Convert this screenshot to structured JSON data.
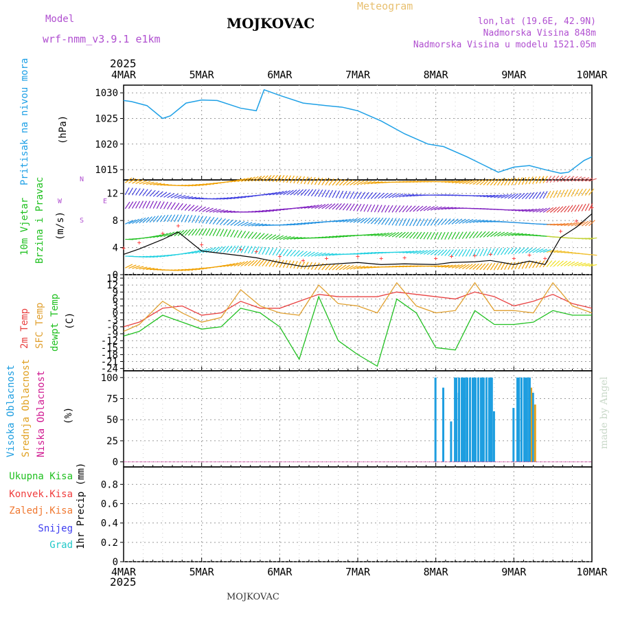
{
  "header": {
    "model_label": "Model",
    "model_name": "wrf-nmm_v3.9.1 e1km",
    "station_title": "MOJKOVAC",
    "product": "Meteogram",
    "coords": "lon,lat (19.6E, 42.9N)",
    "elev": "Nadmorska Visina 848m",
    "model_elev": "Nadmorska Visina u modelu 1521.05m",
    "year_top": "2025",
    "year_bottom": "2025",
    "footer_title": "MOJKOVAC",
    "credit": "made by Angel"
  },
  "axis": {
    "days": [
      "4MAR",
      "5MAR",
      "6MAR",
      "7MAR",
      "8MAR",
      "9MAR",
      "10MAR"
    ]
  },
  "panels": {
    "pressure": {
      "label": "Pritisak na nivou mora",
      "unit": "(hPa)",
      "ticks": [
        "1030",
        "1025",
        "1020",
        "1015"
      ]
    },
    "wind": {
      "label1": "10m Vjetar",
      "label2": "Brzina i Pravac",
      "unit": "(m/s)",
      "ticks": [
        "12",
        "8",
        "4",
        "0"
      ],
      "compass_n": "N",
      "compass_w": "W",
      "compass_e": "E",
      "compass_s": "S"
    },
    "temp": {
      "label1": "2m Temp",
      "label2": "SFC Temp",
      "label3": "dewpt Temp",
      "unit": "(C)",
      "ticks": [
        "15",
        "12",
        "9",
        "6",
        "3",
        "0",
        "-3",
        "-6",
        "-9",
        "-12",
        "-15",
        "-18",
        "-21",
        "-24"
      ]
    },
    "cloud": {
      "label1": "Visoka Oblacnost",
      "label2": "Srednja Oblacnost",
      "label3": "Niska Oblacnost",
      "unit": "(%)",
      "ticks": [
        "100",
        "75",
        "50",
        "25",
        "0"
      ]
    },
    "precip": {
      "labels": [
        "Ukupna Kisa",
        "Konvek.Kisa",
        "Zaledj.Kisa",
        "Snijeg",
        "Grad"
      ],
      "unit": "1hr Precip (mm)",
      "ticks": [
        "0.8",
        "0.6",
        "0.4",
        "0.2",
        "0"
      ]
    }
  },
  "colors": {
    "title": "#000000",
    "header_purple": "#b04fd0",
    "meteogram": "#e8c070",
    "pressure": "#1ea0e6",
    "temp2m": "#e84040",
    "sfc": "#e0a030",
    "dewpt": "#20c020",
    "high_cloud": "#1e9ee0",
    "mid_cloud": "#e0a020",
    "low_cloud": "#d01890",
    "precip_total": "#20c020",
    "precip_conv": "#f03c3c",
    "precip_frz": "#f07830",
    "snow": "#3c3cf0",
    "hail": "#20c8c8",
    "wind_speed": "#000000",
    "gust": "#ff3030"
  },
  "chart_data": [
    {
      "type": "line",
      "title": "",
      "ylabel": "Pritisak na nivou mora (hPa)",
      "ylim": [
        1013,
        1031.5
      ],
      "x_days": [
        0,
        0.1,
        0.3,
        0.5,
        0.6,
        0.8,
        1,
        1.2,
        1.5,
        1.7,
        1.8,
        2,
        2.3,
        2.6,
        2.8,
        3,
        3.3,
        3.6,
        3.9,
        4.1,
        4.4,
        4.6,
        4.8,
        5,
        5.2,
        5.4,
        5.6,
        5.7,
        5.9,
        6
      ],
      "series": [
        {
          "values": [
            1028.5,
            1028.3,
            1027.5,
            1025,
            1025.5,
            1028,
            1028.6,
            1028.5,
            1027,
            1026.5,
            1030.6,
            1029.5,
            1028,
            1027.5,
            1027.2,
            1026.5,
            1024.5,
            1022,
            1020,
            1019.5,
            1017.5,
            1016,
            1014.5,
            1015.5,
            1015.8,
            1015,
            1014.3,
            1014.5,
            1016.8,
            1017.5
          ]
        }
      ]
    },
    {
      "type": "line",
      "title": "",
      "ylabel": "10m Vjetar Brzina i Pravac (m/s)",
      "ylim": [
        0,
        14
      ],
      "x_days": [
        0,
        0.2,
        0.5,
        0.7,
        1,
        1.5,
        1.7,
        2,
        2.3,
        2.6,
        3,
        3.3,
        3.6,
        4,
        4.2,
        4.5,
        4.7,
        5,
        5.2,
        5.4,
        5.6,
        5.8,
        6
      ],
      "series": [
        {
          "values": [
            3,
            3.8,
            5.2,
            6.3,
            3.5,
            2.8,
            2.5,
            1.8,
            1.2,
            1.5,
            1.8,
            1.5,
            1.6,
            1.5,
            1.8,
            1.9,
            2.1,
            1.5,
            2.0,
            1.5,
            5.5,
            7.0,
            9.0
          ]
        }
      ]
    },
    {
      "type": "line",
      "title": "",
      "ylabel": "Temp (C)",
      "ylim": [
        -25,
        16.5
      ],
      "x_days": [
        0,
        0.2,
        0.5,
        0.75,
        1,
        1.25,
        1.5,
        1.75,
        2,
        2.25,
        2.5,
        2.75,
        3,
        3.25,
        3.5,
        3.75,
        4,
        4.25,
        4.5,
        4.75,
        5,
        5.25,
        5.5,
        5.75,
        6
      ],
      "series": [
        {
          "name": "2m Temp",
          "values": [
            -6,
            -4,
            2,
            3,
            -1,
            0,
            5,
            2,
            2,
            5,
            8,
            7,
            7,
            7,
            9,
            8,
            7,
            6,
            9,
            7,
            3,
            5,
            8,
            4,
            2
          ]
        },
        {
          "name": "SFC Temp",
          "values": [
            -8,
            -5,
            5,
            0,
            -4,
            -2,
            10,
            3,
            0,
            -1,
            12,
            4,
            3,
            0,
            13,
            3,
            0,
            1,
            13,
            1,
            1,
            0,
            13,
            3,
            0
          ]
        },
        {
          "name": "dewpt Temp",
          "values": [
            -10,
            -8,
            -1,
            -4,
            -7,
            -6,
            2,
            0,
            -6,
            -20,
            7,
            -12,
            -18,
            -23,
            6,
            0,
            -15,
            -16,
            1,
            -5,
            -5,
            -4,
            1,
            -1,
            -1
          ]
        }
      ]
    },
    {
      "type": "bar",
      "title": "",
      "ylabel": "Oblacnost (%)",
      "ylim": [
        0,
        100
      ],
      "x_days": [
        4.0,
        4.1,
        4.2,
        4.25,
        4.3,
        4.35,
        4.4,
        4.5,
        4.6,
        4.7,
        4.75,
        5.0,
        5.05,
        5.1,
        5.15,
        5.2,
        5.25
      ],
      "series": [
        {
          "name": "Visoka Oblacnost",
          "values": [
            100,
            88,
            48,
            100,
            82,
            100,
            100,
            100,
            100,
            100,
            60,
            64,
            100,
            100,
            100,
            100,
            82
          ]
        },
        {
          "name": "Srednja Oblacnost",
          "values": [
            0,
            0,
            0,
            0,
            0,
            0,
            0,
            0,
            0,
            0,
            0,
            0,
            0,
            0,
            0,
            88,
            68
          ]
        },
        {
          "name": "Niska Oblacnost",
          "values": [
            0,
            0,
            0,
            0,
            0,
            0,
            0,
            0,
            0,
            0,
            0,
            0,
            0,
            0,
            0,
            0,
            0
          ]
        }
      ]
    },
    {
      "type": "bar",
      "title": "",
      "ylabel": "1hr Precip (mm)",
      "ylim": [
        0,
        1
      ],
      "x_days": [],
      "series": [
        {
          "name": "Ukupna Kisa",
          "values": []
        }
      ]
    }
  ]
}
